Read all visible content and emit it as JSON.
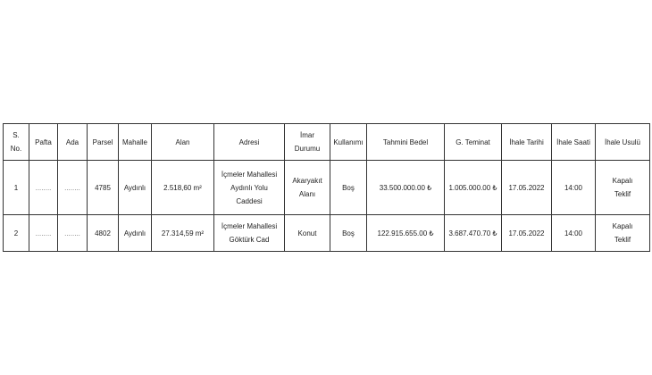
{
  "table": {
    "headers": [
      [
        "S.",
        "No."
      ],
      [
        "Pafta"
      ],
      [
        "Ada"
      ],
      [
        "Parsel"
      ],
      [
        "Mahalle"
      ],
      [
        "Alan"
      ],
      [
        "Adresi"
      ],
      [
        "İmar",
        "Durumu"
      ],
      [
        "Kullanımı"
      ],
      [
        "Tahmini Bedel"
      ],
      [
        "G. Teminat"
      ],
      [
        "İhale Tarihi"
      ],
      [
        "İhale Saati"
      ],
      [
        "İhale Usulü"
      ]
    ],
    "rows": [
      {
        "no": "1",
        "pafta": "........",
        "ada": "........",
        "parsel": "4785",
        "mahalle": "Aydınlı",
        "alan": "2.518,60 m²",
        "adres": [
          "İçmeler Mahallesi",
          "Aydınlı Yolu",
          "Caddesi"
        ],
        "imar": [
          "Akaryakıt",
          "Alanı"
        ],
        "kullanim": "Boş",
        "bedel": "33.500.000.00 ₺",
        "teminat": "1.005.000.00 ₺",
        "tarih": "17.05.2022",
        "saat": "14:00",
        "usul": [
          "Kapalı",
          "Teklif"
        ]
      },
      {
        "no": "2",
        "pafta": "........",
        "ada": "........",
        "parsel": "4802",
        "mahalle": "Aydınlı",
        "alan": "27.314,59 m²",
        "adres": [
          "İçmeler Mahallesi",
          "Göktürk Cad"
        ],
        "imar": [
          "Konut"
        ],
        "kullanim": "Boş",
        "bedel": "122.915.655.00 ₺",
        "teminat": "3.687.470.70 ₺",
        "tarih": "17.05.2022",
        "saat": "14:00",
        "usul": [
          "Kapalı",
          "Teklif"
        ]
      }
    ]
  }
}
